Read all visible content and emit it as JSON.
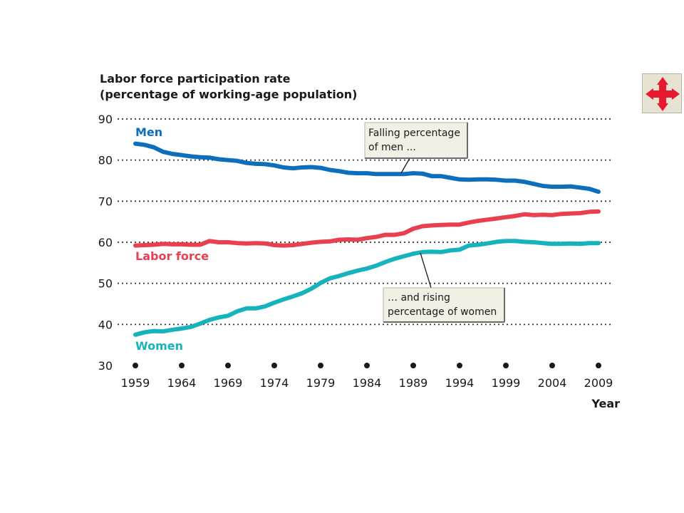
{
  "nav": {
    "icon": "four-way-arrows-icon",
    "color": "#e8182e"
  },
  "chart_data": {
    "type": "line",
    "ylabel_lines": [
      "Labor force participation rate",
      "(percentage of working-age population)"
    ],
    "xlabel": "Year",
    "ylim": [
      30,
      90
    ],
    "xlim": [
      1959,
      2009
    ],
    "yticks": [
      30,
      40,
      50,
      60,
      70,
      80,
      90
    ],
    "xticks": [
      1959,
      1964,
      1969,
      1974,
      1979,
      1984,
      1989,
      1994,
      1999,
      2004,
      2009
    ],
    "grid": "horizontal dotted",
    "x": [
      1959,
      1960,
      1961,
      1962,
      1963,
      1964,
      1965,
      1966,
      1967,
      1968,
      1969,
      1970,
      1971,
      1972,
      1973,
      1974,
      1975,
      1976,
      1977,
      1978,
      1979,
      1980,
      1981,
      1982,
      1983,
      1984,
      1985,
      1986,
      1987,
      1988,
      1989,
      1990,
      1991,
      1992,
      1993,
      1994,
      1995,
      1996,
      1997,
      1998,
      1999,
      2000,
      2001,
      2002,
      2003,
      2004,
      2005,
      2006,
      2007,
      2008,
      2009
    ],
    "series": [
      {
        "name": "Men",
        "color": "#0d6ebc",
        "values": [
          84.0,
          83.7,
          83.1,
          82.0,
          81.5,
          81.2,
          80.9,
          80.7,
          80.6,
          80.2,
          80.0,
          79.8,
          79.3,
          79.1,
          79.0,
          78.7,
          78.2,
          78.0,
          78.2,
          78.3,
          78.1,
          77.6,
          77.3,
          76.9,
          76.8,
          76.8,
          76.6,
          76.6,
          76.6,
          76.6,
          76.8,
          76.7,
          76.1,
          76.1,
          75.7,
          75.3,
          75.2,
          75.3,
          75.3,
          75.2,
          75.0,
          75.0,
          74.7,
          74.2,
          73.7,
          73.5,
          73.5,
          73.6,
          73.3,
          73.0,
          72.3
        ]
      },
      {
        "name": "Labor force",
        "color": "#e8404f",
        "values": [
          59.2,
          59.3,
          59.4,
          59.6,
          59.5,
          59.5,
          59.4,
          59.4,
          60.3,
          60.0,
          60.0,
          59.8,
          59.7,
          59.8,
          59.7,
          59.3,
          59.2,
          59.3,
          59.6,
          59.9,
          60.1,
          60.2,
          60.6,
          60.7,
          60.6,
          61.0,
          61.3,
          61.8,
          61.8,
          62.2,
          63.3,
          63.9,
          64.1,
          64.2,
          64.3,
          64.3,
          64.8,
          65.2,
          65.5,
          65.8,
          66.1,
          66.4,
          66.8,
          66.6,
          66.7,
          66.6,
          66.9,
          67.0,
          67.1,
          67.4,
          67.5
        ]
      },
      {
        "name": "Women",
        "color": "#16b3bd",
        "values": [
          37.5,
          38.1,
          38.4,
          38.3,
          38.7,
          39.0,
          39.4,
          40.2,
          41.1,
          41.7,
          42.1,
          43.2,
          43.9,
          43.9,
          44.4,
          45.3,
          46.1,
          46.8,
          47.6,
          48.7,
          50.1,
          51.2,
          51.8,
          52.5,
          53.1,
          53.6,
          54.3,
          55.2,
          56.0,
          56.6,
          57.2,
          57.6,
          57.7,
          57.6,
          58.0,
          58.2,
          59.2,
          59.4,
          59.7,
          60.1,
          60.3,
          60.3,
          60.1,
          60.0,
          59.8,
          59.6,
          59.6,
          59.7,
          59.6,
          59.8,
          59.8
        ]
      }
    ],
    "annotations": {
      "men_label": "Men",
      "laborforce_label": "Labor force",
      "women_label": "Women",
      "callout1": {
        "lines": [
          "Falling percentage",
          "of men ..."
        ],
        "point": [
          1986,
          76.6
        ]
      },
      "callout2": {
        "lines": [
          "… and rising",
          "percentage of women"
        ],
        "point": [
          1989,
          57.4
        ]
      }
    }
  }
}
